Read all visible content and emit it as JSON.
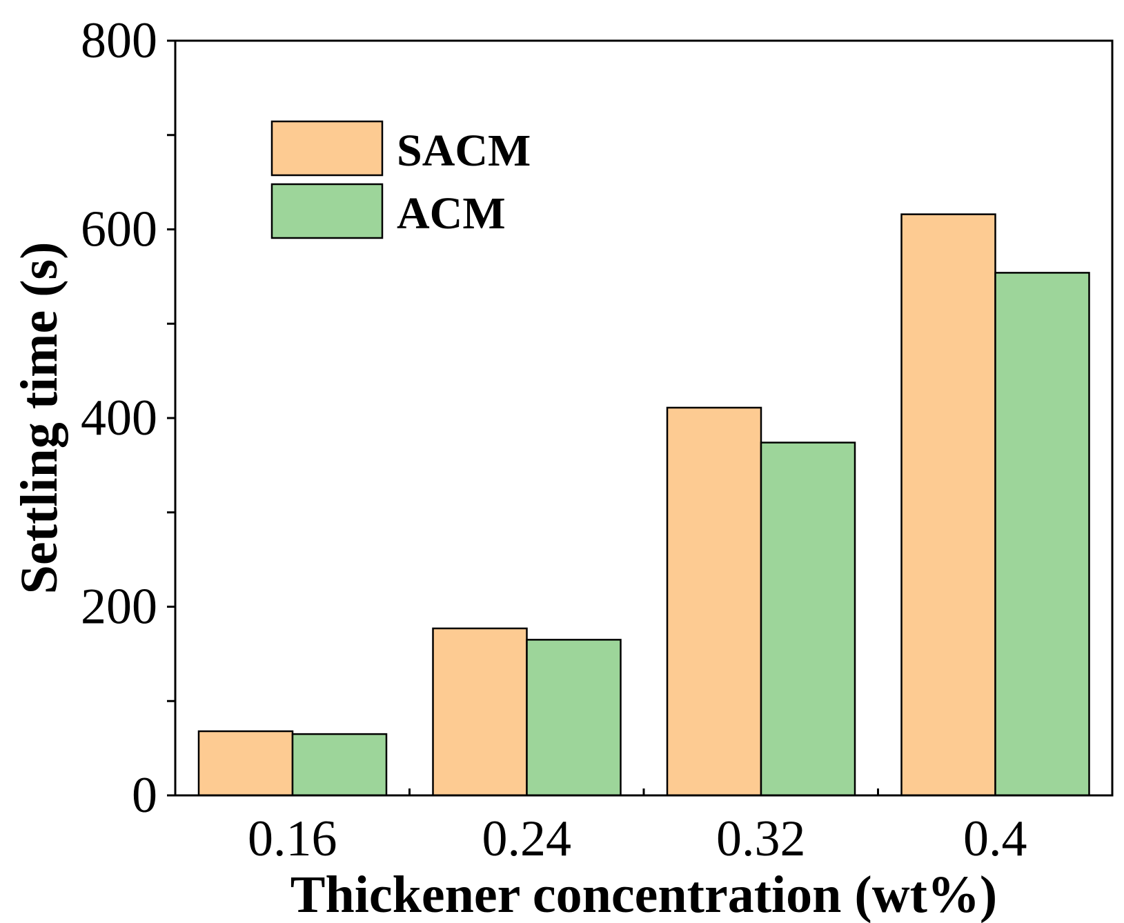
{
  "chart_data": {
    "type": "bar",
    "title": "",
    "xlabel": "Thickener concentration (wt%)",
    "ylabel": "Settling time (s)",
    "categories": [
      "0.16",
      "0.24",
      "0.32",
      "0.4"
    ],
    "series": [
      {
        "name": "SACM",
        "values": [
          68,
          177,
          411,
          616
        ],
        "color": "#fdcb92"
      },
      {
        "name": "ACM",
        "values": [
          65,
          165,
          374,
          554
        ],
        "color": "#9dd59a"
      }
    ],
    "ylim": [
      0,
      800
    ],
    "yticks": [
      "0",
      "200",
      "400",
      "600",
      "800"
    ],
    "y_minor_ticks": [
      100,
      300,
      500,
      700
    ],
    "grid": false,
    "legend_position": "top-left",
    "bar_edge_color": "#000000"
  }
}
